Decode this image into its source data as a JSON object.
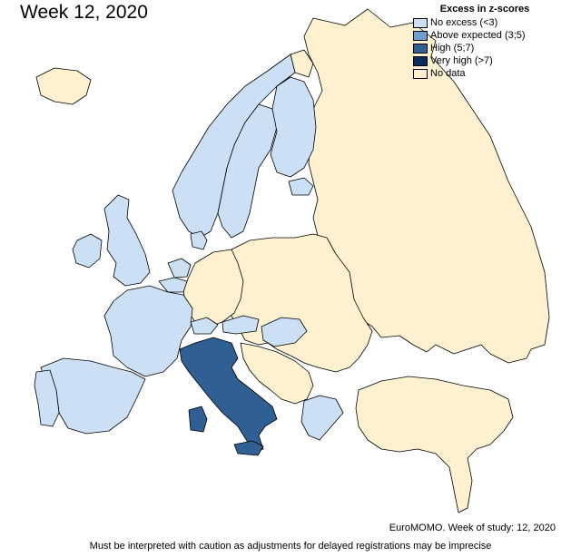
{
  "title": "Week 12, 2020",
  "legend": {
    "title": "Excess in z-scores",
    "items": [
      {
        "label": "No excess (<3)",
        "color": "#cce0f5"
      },
      {
        "label": "Above expected (3;5)",
        "color": "#6f9fcf"
      },
      {
        "label": "High (5;7)",
        "color": "#2f5f93"
      },
      {
        "label": "Very high (>7)",
        "color": "#0a2f5c"
      },
      {
        "label": "No data",
        "color": "#fdf1d0"
      }
    ]
  },
  "regions": [
    {
      "name": "Norway",
      "category": "No excess (<3)"
    },
    {
      "name": "Sweden",
      "category": "No excess (<3)"
    },
    {
      "name": "Finland",
      "category": "No excess (<3)"
    },
    {
      "name": "Estonia",
      "category": "No excess (<3)"
    },
    {
      "name": "Denmark",
      "category": "No excess (<3)"
    },
    {
      "name": "United Kingdom",
      "category": "No excess (<3)"
    },
    {
      "name": "Ireland",
      "category": "No excess (<3)"
    },
    {
      "name": "Netherlands",
      "category": "No excess (<3)"
    },
    {
      "name": "Belgium",
      "category": "No excess (<3)"
    },
    {
      "name": "France",
      "category": "No excess (<3)"
    },
    {
      "name": "Spain",
      "category": "No excess (<3)"
    },
    {
      "name": "Portugal",
      "category": "No excess (<3)"
    },
    {
      "name": "Switzerland",
      "category": "No excess (<3)"
    },
    {
      "name": "Austria",
      "category": "No excess (<3)"
    },
    {
      "name": "Hungary",
      "category": "No excess (<3)"
    },
    {
      "name": "Greece",
      "category": "No excess (<3)"
    },
    {
      "name": "Italy",
      "category": "High (5;7)"
    },
    {
      "name": "Iceland",
      "category": "No data"
    },
    {
      "name": "Russia",
      "category": "No data"
    },
    {
      "name": "Germany",
      "category": "No data"
    },
    {
      "name": "Poland",
      "category": "No data"
    },
    {
      "name": "Turkey",
      "category": "No data"
    }
  ],
  "footer": {
    "source": "EuroMOMO. Week of study: 12, 2020",
    "note": "Must be interpreted with caution as adjustments for delayed registrations may be imprecise"
  }
}
